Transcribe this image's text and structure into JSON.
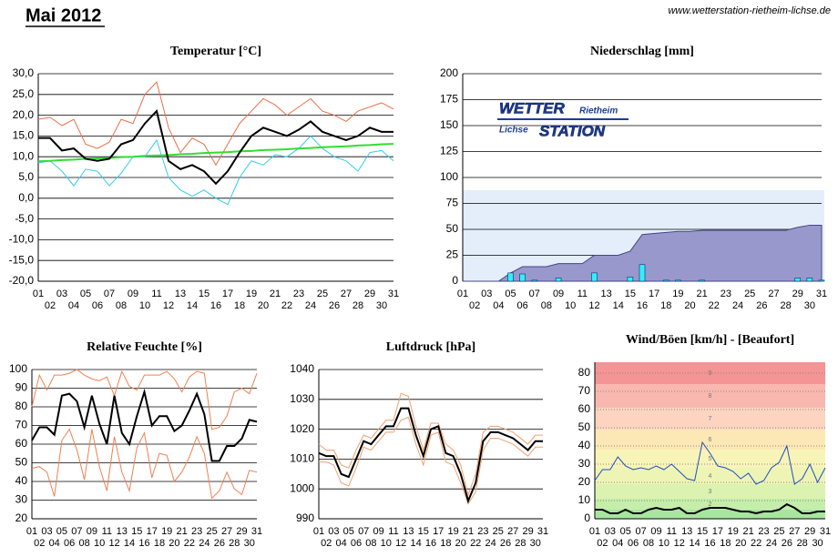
{
  "header": {
    "title": "Mai 2012",
    "url": "www.wetterstation-rietheim-lichse.de"
  },
  "logo": {
    "top_left": "WETTER",
    "top_right": "Rietheim",
    "bottom_left": "Lichse",
    "bottom_right": "STATION"
  },
  "chart_data": [
    {
      "type": "line",
      "title": "Temperatur [°C]",
      "categories": [
        "01",
        "02",
        "03",
        "04",
        "05",
        "06",
        "07",
        "08",
        "09",
        "10",
        "11",
        "12",
        "13",
        "14",
        "15",
        "16",
        "17",
        "18",
        "19",
        "20",
        "21",
        "22",
        "23",
        "24",
        "25",
        "26",
        "27",
        "28",
        "29",
        "30",
        "31"
      ],
      "ylim": [
        -20,
        30
      ],
      "yticks": [
        {
          "value": 30,
          "label": "30,0"
        },
        {
          "value": 25,
          "label": "25,0"
        },
        {
          "value": 20,
          "label": "20,0"
        },
        {
          "value": 15,
          "label": "15,0"
        },
        {
          "value": 10,
          "label": "10,0"
        },
        {
          "value": 5,
          "label": "5,0"
        },
        {
          "value": 0,
          "label": "0,0"
        },
        {
          "value": -5,
          "label": "-5,0"
        },
        {
          "value": -10,
          "label": "-10,0"
        },
        {
          "value": -15,
          "label": "-15,0"
        },
        {
          "value": -20,
          "label": "-20,0"
        }
      ],
      "grid": true,
      "series": [
        {
          "color": "#e8704a",
          "values": [
            19,
            19.5,
            17.5,
            19,
            13,
            12,
            13.5,
            19,
            18,
            25,
            28,
            17,
            11,
            14.5,
            13,
            8,
            13,
            18,
            21,
            24,
            22.5,
            20,
            22,
            24,
            21,
            20,
            18.5,
            21,
            22,
            23,
            21.5
          ]
        },
        {
          "color": "#33ccee",
          "values": [
            8.5,
            9,
            6.5,
            3,
            7,
            6.5,
            3,
            6,
            10,
            10,
            14,
            5,
            2,
            0.5,
            2,
            0,
            -1.5,
            5,
            9,
            8,
            10.5,
            10,
            12,
            15,
            12,
            10,
            9,
            6.5,
            11,
            11.5,
            9
          ]
        },
        {
          "color": "#33dd33",
          "width": 2,
          "values": [
            8.9,
            9.0,
            9.2,
            9.3,
            9.5,
            9.6,
            9.7,
            9.9,
            10.0,
            10.2,
            10.3,
            10.4,
            10.6,
            10.7,
            10.9,
            11.0,
            11.1,
            11.3,
            11.4,
            11.6,
            11.7,
            11.8,
            12.0,
            12.1,
            12.3,
            12.4,
            12.5,
            12.7,
            12.8,
            13.0,
            13.1
          ]
        },
        {
          "color": "#000000",
          "width": 2,
          "values": [
            14.5,
            14.5,
            11.5,
            12,
            9.5,
            9,
            9.5,
            13,
            14,
            18,
            21,
            9,
            7,
            8,
            6.5,
            3.5,
            6.5,
            11,
            15,
            17,
            16,
            15,
            16.5,
            18.5,
            16,
            15,
            14,
            15,
            17,
            16,
            16
          ]
        }
      ]
    },
    {
      "type": "bar",
      "title": "Niederschlag [mm]",
      "categories": [
        "01",
        "02",
        "03",
        "04",
        "05",
        "06",
        "07",
        "08",
        "09",
        "10",
        "11",
        "12",
        "13",
        "14",
        "15",
        "16",
        "17",
        "18",
        "19",
        "20",
        "21",
        "22",
        "23",
        "24",
        "25",
        "26",
        "27",
        "28",
        "29",
        "30",
        "31"
      ],
      "ylim": [
        0,
        200
      ],
      "yticks": [
        0,
        25,
        50,
        75,
        100,
        125,
        150,
        175,
        200
      ],
      "grid": true,
      "series": [
        {
          "type": "area",
          "color": "#9898cc",
          "values": [
            0,
            0,
            0,
            0,
            8,
            14,
            14,
            14,
            17,
            17,
            17,
            25,
            25,
            25,
            29,
            45,
            46,
            47,
            48,
            48,
            49,
            49,
            49,
            49,
            49,
            49,
            49,
            49,
            52,
            54,
            54
          ]
        },
        {
          "type": "bar",
          "color": "#33eeff",
          "values": [
            0,
            0,
            0,
            0,
            8,
            7,
            1,
            0,
            3,
            0,
            0,
            8,
            0,
            0,
            4,
            16,
            0,
            1,
            1,
            0,
            1,
            0,
            0,
            0,
            0,
            0,
            0,
            0,
            3,
            3,
            1
          ]
        }
      ]
    },
    {
      "type": "line",
      "title": "Relative Feuchte [%]",
      "categories": [
        "01",
        "02",
        "03",
        "04",
        "05",
        "06",
        "07",
        "08",
        "09",
        "10",
        "11",
        "12",
        "13",
        "14",
        "15",
        "16",
        "17",
        "18",
        "19",
        "20",
        "21",
        "22",
        "23",
        "24",
        "25",
        "26",
        "27",
        "28",
        "29",
        "30",
        "31"
      ],
      "ylim": [
        20,
        100
      ],
      "yticks": [
        20,
        30,
        40,
        50,
        60,
        70,
        80,
        90,
        100
      ],
      "grid": true,
      "series": [
        {
          "color": "#f08050",
          "values": [
            80,
            97,
            89,
            97,
            97,
            98,
            100,
            97,
            95,
            94,
            96,
            86,
            99,
            91,
            89,
            97,
            97,
            97,
            99,
            95,
            88,
            96,
            99,
            98,
            68,
            69,
            75,
            88,
            90,
            87,
            98
          ]
        },
        {
          "color": "#f08050",
          "values": [
            47,
            48,
            45,
            32,
            62,
            68,
            57,
            41,
            68,
            48,
            35,
            64,
            45,
            35,
            58,
            66,
            42,
            55,
            54,
            40,
            45,
            53,
            64,
            55,
            31,
            35,
            45,
            36,
            33,
            46,
            45
          ]
        },
        {
          "color": "#000000",
          "width": 2,
          "values": [
            62,
            69,
            69,
            65,
            86,
            87,
            83,
            69,
            86,
            71,
            60,
            86,
            66,
            60,
            75,
            88,
            70,
            75,
            75,
            67,
            70,
            78,
            87,
            76,
            51,
            51,
            59,
            59,
            63,
            73,
            72
          ]
        }
      ]
    },
    {
      "type": "line",
      "title": "Luftdruck [hPa]",
      "categories": [
        "01",
        "02",
        "03",
        "04",
        "05",
        "06",
        "07",
        "08",
        "09",
        "10",
        "11",
        "12",
        "13",
        "14",
        "15",
        "16",
        "17",
        "18",
        "19",
        "20",
        "21",
        "22",
        "23",
        "24",
        "25",
        "26",
        "27",
        "28",
        "29",
        "30",
        "31"
      ],
      "ylim": [
        990,
        1040
      ],
      "yticks": [
        990,
        1000,
        1010,
        1020,
        1030,
        1040
      ],
      "grid": true,
      "series": [
        {
          "color": "#f0a070",
          "values": [
            1015,
            1013,
            1013,
            1008,
            1007,
            1013,
            1018,
            1017,
            1020,
            1023,
            1023,
            1032,
            1031,
            1021,
            1013,
            1022,
            1022,
            1015,
            1013,
            1008,
            998,
            1005,
            1019,
            1021,
            1021,
            1020,
            1019,
            1017,
            1015,
            1018,
            1018
          ]
        },
        {
          "color": "#f0a070",
          "values": [
            1009,
            1009,
            1008,
            1002,
            1001,
            1007,
            1014,
            1013,
            1016,
            1019,
            1019,
            1023,
            1024,
            1015,
            1008,
            1018,
            1019,
            1009,
            1008,
            1002,
            995,
            999,
            1013,
            1017,
            1017,
            1016,
            1015,
            1013,
            1011,
            1014,
            1014
          ]
        },
        {
          "color": "#000000",
          "width": 2,
          "values": [
            1012,
            1011,
            1011,
            1005,
            1004,
            1010,
            1016,
            1015,
            1018,
            1021,
            1021,
            1027,
            1027,
            1018,
            1011,
            1020,
            1021,
            1012,
            1011,
            1005,
            996,
            1002,
            1016,
            1019,
            1019,
            1018,
            1017,
            1015,
            1013,
            1016,
            1016
          ]
        }
      ]
    },
    {
      "type": "line",
      "title": "Wind/Böen [km/h] - [Beaufort]",
      "categories": [
        "01",
        "02",
        "03",
        "04",
        "05",
        "06",
        "07",
        "08",
        "09",
        "10",
        "11",
        "12",
        "13",
        "14",
        "15",
        "16",
        "17",
        "18",
        "19",
        "20",
        "21",
        "22",
        "23",
        "24",
        "25",
        "26",
        "27",
        "28",
        "29",
        "30",
        "31"
      ],
      "ylim": [
        0,
        86
      ],
      "yticks": [
        0,
        10,
        20,
        30,
        40,
        50,
        60,
        70,
        80
      ],
      "grid": true,
      "bands": [
        {
          "from": 0,
          "to": 5,
          "color": "#a8e6a0"
        },
        {
          "label": "2",
          "from": 5,
          "to": 11,
          "color": "#c4eeaa"
        },
        {
          "label": "3",
          "from": 11,
          "to": 19,
          "color": "#dcf2b0"
        },
        {
          "label": "4",
          "from": 19,
          "to": 28,
          "color": "#eef4b4"
        },
        {
          "label": "5",
          "from": 28,
          "to": 38,
          "color": "#f8f4b8"
        },
        {
          "label": "6",
          "from": 38,
          "to": 49,
          "color": "#fce8b4"
        },
        {
          "label": "7",
          "from": 49,
          "to": 61,
          "color": "#fcd4c0"
        },
        {
          "label": "8",
          "from": 61,
          "to": 74,
          "color": "#f8b8b0"
        },
        {
          "label": "9",
          "from": 74,
          "to": 86,
          "color": "#f49494"
        }
      ],
      "series": [
        {
          "color": "#1f4fbf",
          "values": [
            21,
            27,
            27,
            34,
            29,
            27,
            28,
            27,
            29,
            27,
            30,
            26,
            22,
            21,
            42,
            36,
            29,
            28,
            26,
            22,
            25,
            19,
            21,
            28,
            31,
            40,
            19,
            22,
            30,
            20,
            28
          ]
        },
        {
          "color": "#000000",
          "width": 2,
          "values": [
            5,
            5,
            3,
            3,
            5,
            3,
            3,
            5,
            6,
            5,
            5,
            6,
            3,
            3,
            5,
            6,
            6,
            6,
            5,
            4,
            4,
            3,
            4,
            4,
            5,
            8,
            6,
            3,
            3,
            4,
            4
          ]
        }
      ]
    }
  ]
}
